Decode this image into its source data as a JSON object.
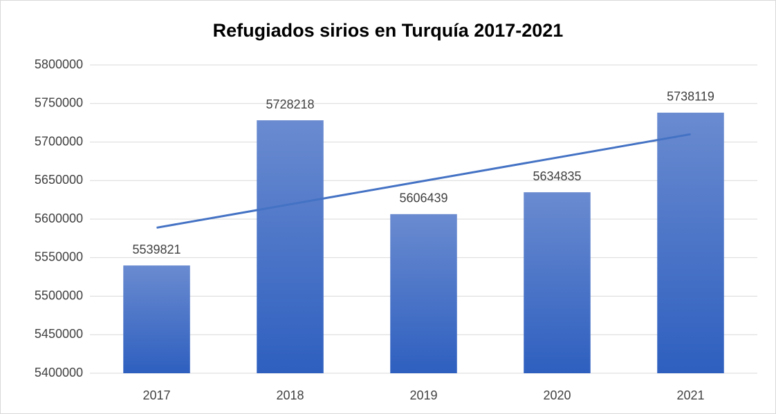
{
  "chart_data": {
    "type": "bar",
    "title": "Refugiados sirios en Turquía 2017-2021",
    "categories": [
      "2017",
      "2018",
      "2019",
      "2020",
      "2021"
    ],
    "values": [
      5539821,
      5728218,
      5606439,
      5634835,
      5738119
    ],
    "color": "#4472c4",
    "trendline": "linear",
    "ylim": [
      5400000,
      5800000
    ],
    "yticks": [
      5400000,
      5450000,
      5500000,
      5550000,
      5600000,
      5650000,
      5700000,
      5750000,
      5800000
    ],
    "grid": true
  }
}
